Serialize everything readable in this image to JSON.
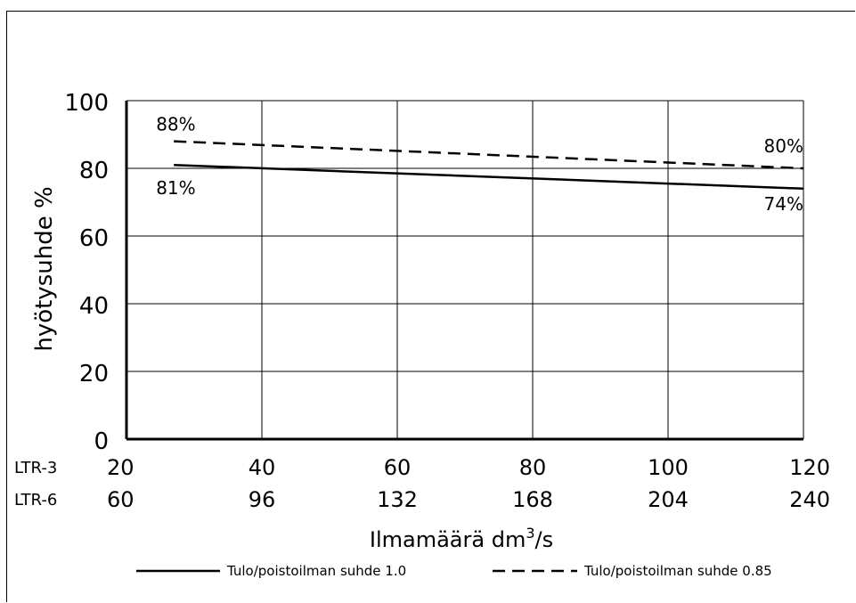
{
  "chart_data": {
    "type": "line",
    "title": "",
    "ylabel": "hyötysuhde %",
    "xlabel_main": "Ilmamäärä dm",
    "xlabel_sup": "3",
    "xlabel_suffix": "/s",
    "ylim": [
      0,
      100
    ],
    "xlim": [
      20,
      120
    ],
    "yticks": [
      "0",
      "20",
      "40",
      "60",
      "80",
      "100"
    ],
    "x_axes": [
      {
        "name": "LTR-3",
        "ticks": [
          "20",
          "40",
          "60",
          "80",
          "100",
          "120"
        ]
      },
      {
        "name": "LTR-6",
        "ticks": [
          "60",
          "96",
          "132",
          "168",
          "204",
          "240"
        ]
      }
    ],
    "grid": true,
    "legend_position": "bottom",
    "series": [
      {
        "name": "Tulo/poistoilman suhde 1.0",
        "style": "solid",
        "x": [
          27,
          120
        ],
        "y": [
          81,
          74
        ],
        "labels": [
          {
            "x": 27,
            "y": 81,
            "text": "81%"
          },
          {
            "x": 120,
            "y": 74,
            "text": "74%"
          }
        ]
      },
      {
        "name": "Tulo/poistoilman suhde 0.85",
        "style": "dashed",
        "x": [
          27,
          120
        ],
        "y": [
          88,
          80
        ],
        "labels": [
          {
            "x": 27,
            "y": 88,
            "text": "88%"
          },
          {
            "x": 120,
            "y": 80,
            "text": "80%"
          }
        ]
      }
    ]
  }
}
